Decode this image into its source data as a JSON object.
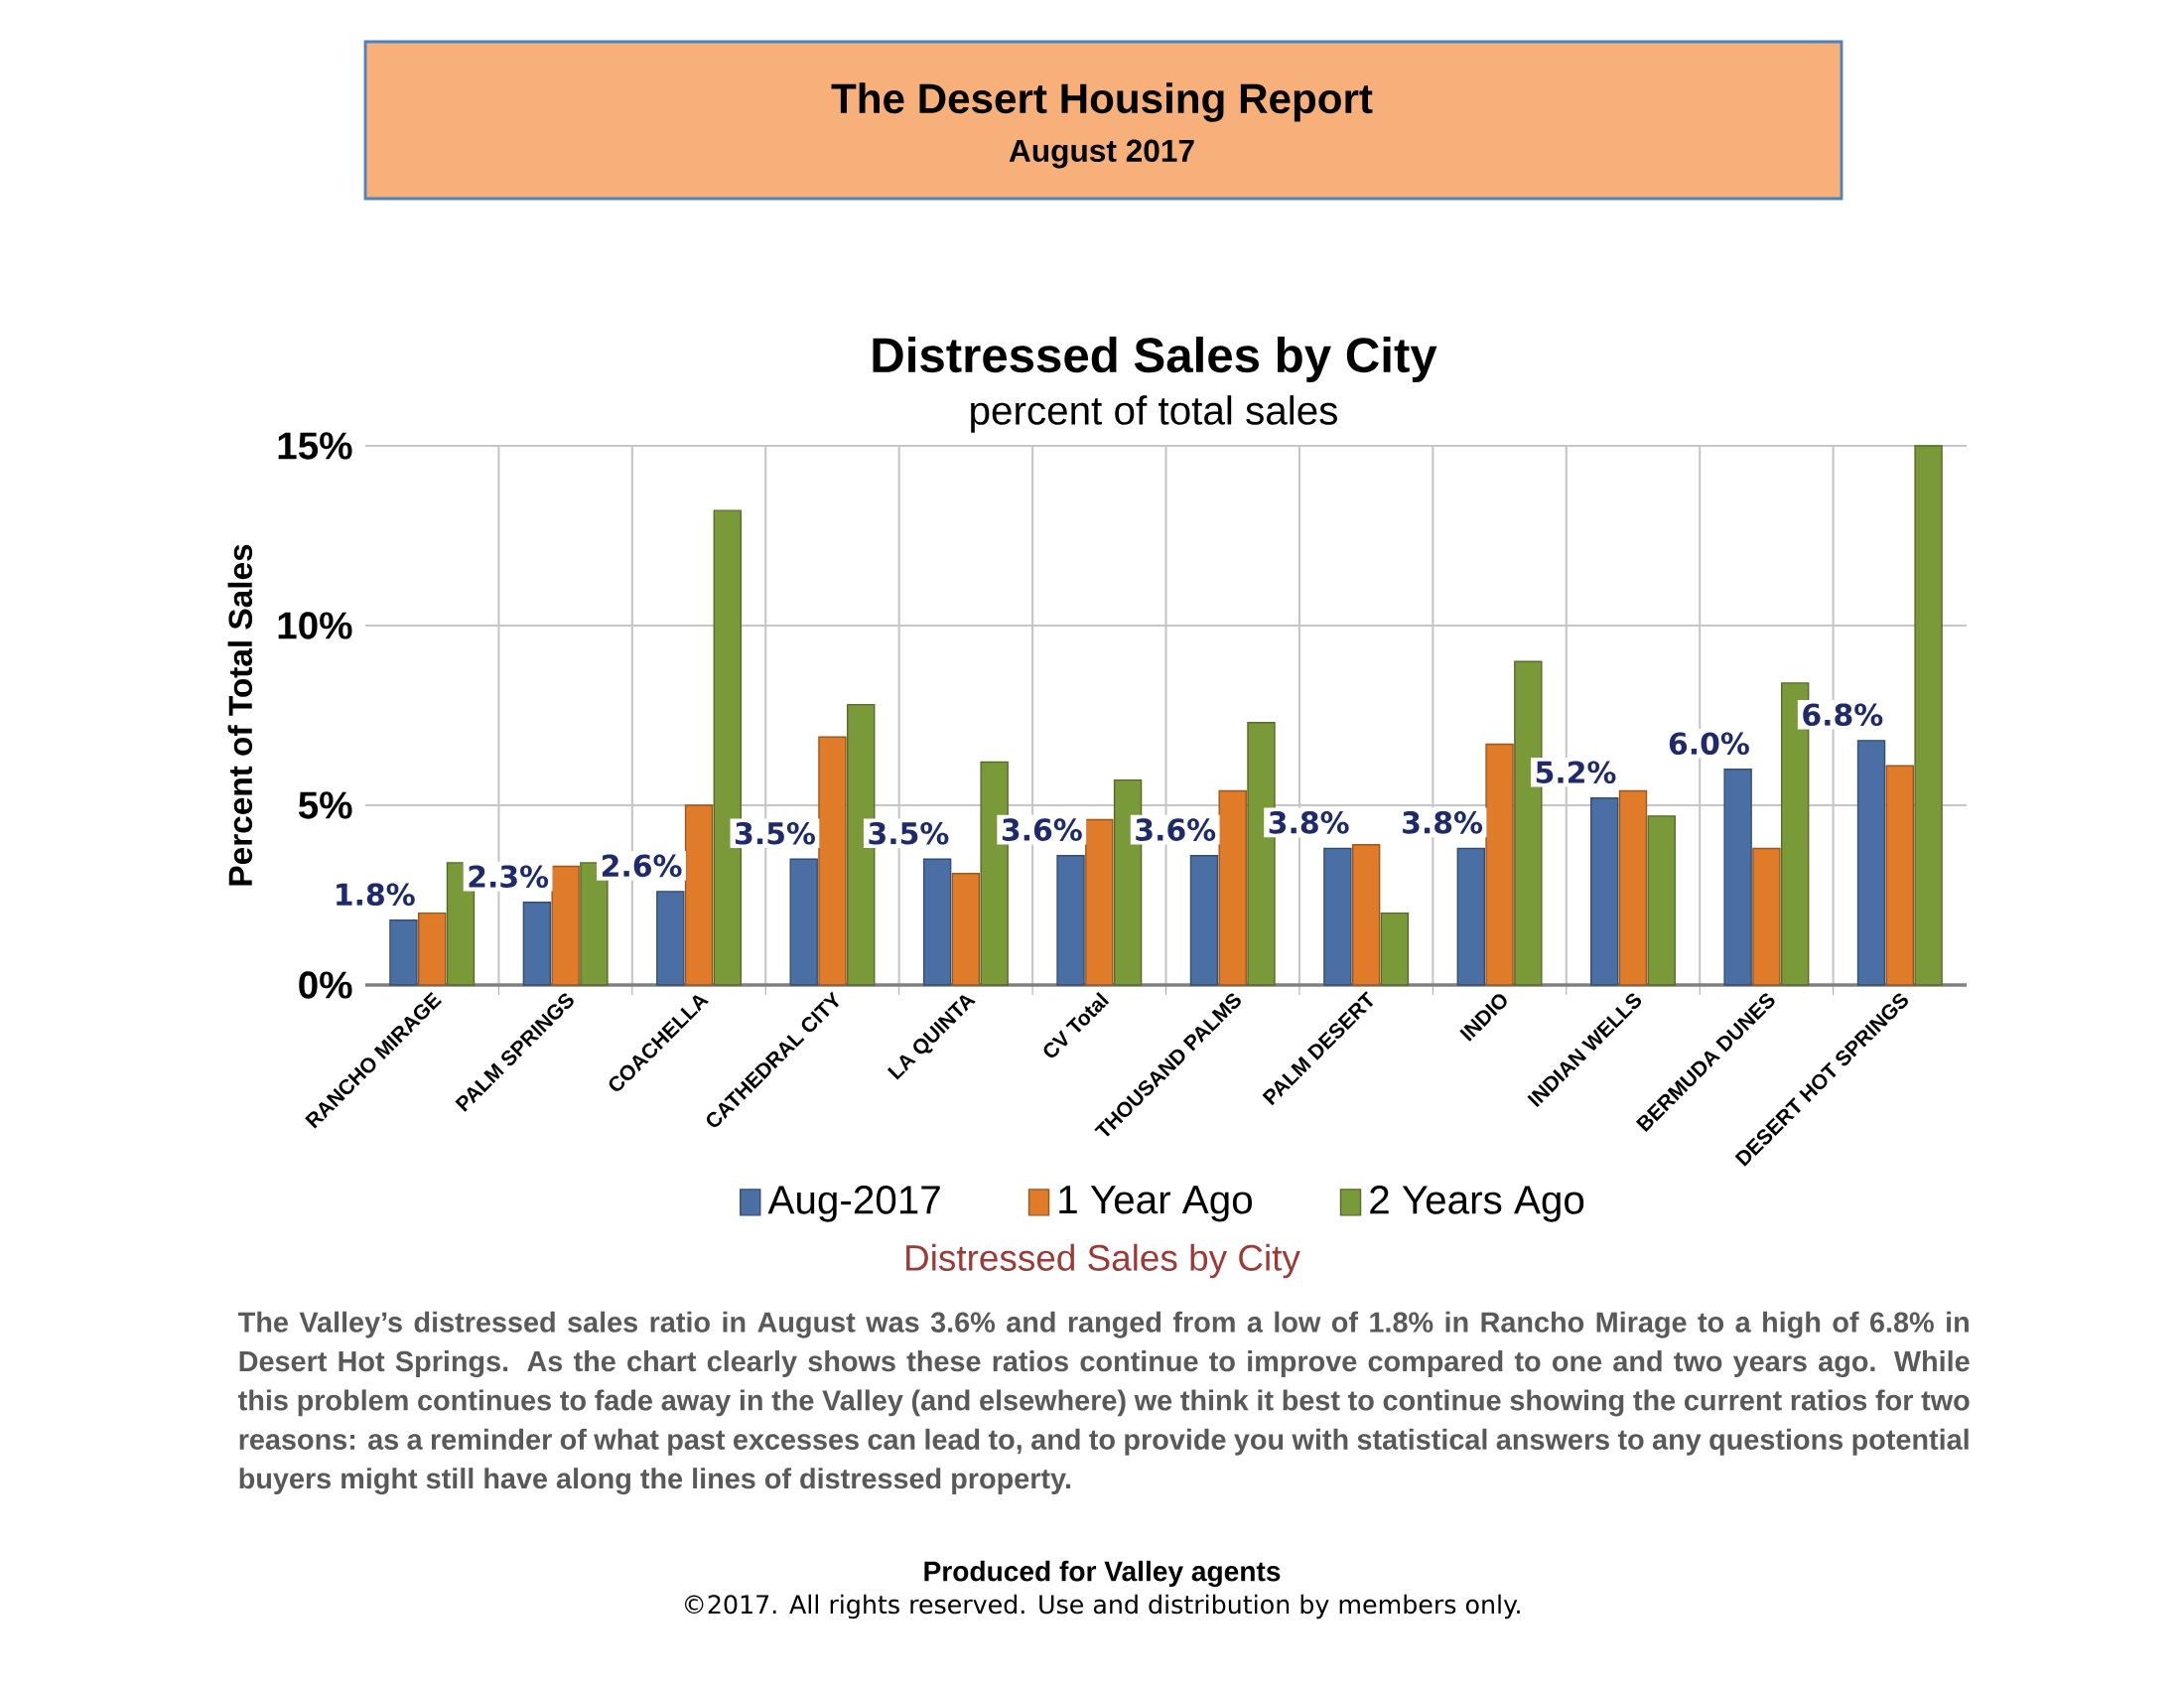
{
  "chart_data": {
    "type": "bar",
    "title": "Distressed Sales by City",
    "subtitle": "percent of total sales",
    "ylabel": "Percent of Total Sales",
    "categories": [
      "RANCHO MIRAGE",
      "PALM SPRINGS",
      "COACHELLA",
      "CATHEDRAL CITY",
      "LA QUINTA",
      "CV Total",
      "THOUSAND PALMS",
      "PALM DESERT",
      "INDIO",
      "INDIAN WELLS",
      "BERMUDA DUNES",
      "DESERT HOT SPRINGS"
    ],
    "series": [
      {
        "name": "Aug-2017",
        "color": "#4a6fa5",
        "values": [
          1.8,
          2.3,
          2.6,
          3.5,
          3.5,
          3.6,
          3.6,
          3.8,
          3.8,
          5.2,
          6.0,
          6.8
        ],
        "value_labels": [
          "1.8%",
          "2.3%",
          "2.6%",
          "3.5%",
          "3.5%",
          "3.6%",
          "3.6%",
          "3.8%",
          "3.8%",
          "5.2%",
          "6.0%",
          "6.8%"
        ]
      },
      {
        "name": "1 Year Ago",
        "color": "#e07b2a",
        "values": [
          2.0,
          3.3,
          5.0,
          6.9,
          3.1,
          4.6,
          5.4,
          3.9,
          6.7,
          5.4,
          3.8,
          6.1
        ]
      },
      {
        "name": "2 Years Ago",
        "color": "#7a9a3a",
        "values": [
          3.4,
          3.4,
          13.2,
          7.8,
          6.2,
          5.7,
          7.3,
          2.0,
          9.0,
          4.7,
          8.4,
          15.0
        ]
      }
    ],
    "ylim": [
      0,
      15
    ],
    "yticks": [
      {
        "value": 0,
        "label": "0%"
      },
      {
        "value": 5,
        "label": "5%"
      },
      {
        "value": 10,
        "label": "10%"
      },
      {
        "value": 15,
        "label": "15%"
      }
    ],
    "grid": true,
    "legend": "bottom",
    "annotations": [
      "The Desert Housing Report",
      "August 2017",
      "Distressed Sales by City",
      "The Valley’s distressed sales ratio in August was 3.6% and ranged from a low of 1.8% in Rancho Mirage to a high of 6.8% in Desert Hot Springs. As the chart clearly shows these ratios continue to improve compared to one and two years ago. While this problem continues to fade away in the Valley (and elsewhere) we think it best to continue showing the current ratios for two reasons: as a reminder of what past excesses can lead to, and to provide you with statistical answers to any questions potential buyers might still have along the lines of distressed property.",
      "Produced for Valley agents",
      "©2017. All rights reserved.  Use and distribution by members only."
    ]
  }
}
